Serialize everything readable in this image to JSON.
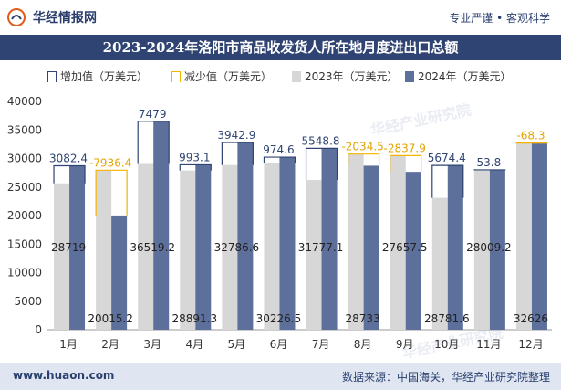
{
  "header": {
    "brand": "华经情报网",
    "tagline": "专业严谨 • 客观科学",
    "title": "2023-2024年洛阳市商品收发货人所在地月度进出口总额"
  },
  "legend": {
    "increase": "增加值（万美元）",
    "decrease": "减少值（万美元）",
    "y2023": "2023年（万美元）",
    "y2024": "2024年（万美元）"
  },
  "footer": {
    "site": "www.huaon.com",
    "source": "数据来源：中国海关，华经产业研究院整理"
  },
  "watermarks": [
    "华经产业研究院",
    "华经产业研究院"
  ],
  "colors": {
    "bar2023": "#d7d7d7",
    "bar2024": "#5d6f9b",
    "increase": "#2f4472",
    "decrease": "#f4b400",
    "increase_label": "#2f4472",
    "decrease_label": "#e4a400"
  },
  "chart_data": {
    "type": "bar",
    "categories": [
      "1月",
      "2月",
      "3月",
      "4月",
      "5月",
      "6月",
      "7月",
      "8月",
      "9月",
      "10月",
      "11月",
      "12月"
    ],
    "series": [
      {
        "name": "2023年（万美元）",
        "values": [
          25636.6,
          27951.5,
          29040.2,
          27898.2,
          28843.7,
          29252.0,
          26228.3,
          30767.5,
          30495.4,
          23107.2,
          27955.4,
          32694.3
        ]
      },
      {
        "name": "2024年（万美元）",
        "values": [
          28719,
          20015.2,
          36519.2,
          28891.3,
          32786.6,
          30226.5,
          31777.1,
          28733,
          27657.5,
          28781.6,
          28009.2,
          32626
        ]
      }
    ],
    "change_labels": [
      "3082.4",
      "-7936.4",
      "7479",
      "993.1",
      "3942.9",
      "974.6",
      "5548.8",
      "-2034.5",
      "-2837.9",
      "5674.4",
      "53.8",
      "-68.3"
    ],
    "value_labels_2024": [
      "28719",
      "20015.2",
      "36519.2",
      "28891.3",
      "32786.6",
      "30226.5",
      "31777.1",
      "28733",
      "27657.5",
      "28781.6",
      "28009.2",
      "32626"
    ],
    "yticks": [
      "0",
      "5000",
      "10000",
      "15000",
      "20000",
      "25000",
      "30000",
      "35000",
      "40000"
    ],
    "ylim": [
      0,
      40000
    ],
    "grid": false,
    "legend_position": "top"
  }
}
